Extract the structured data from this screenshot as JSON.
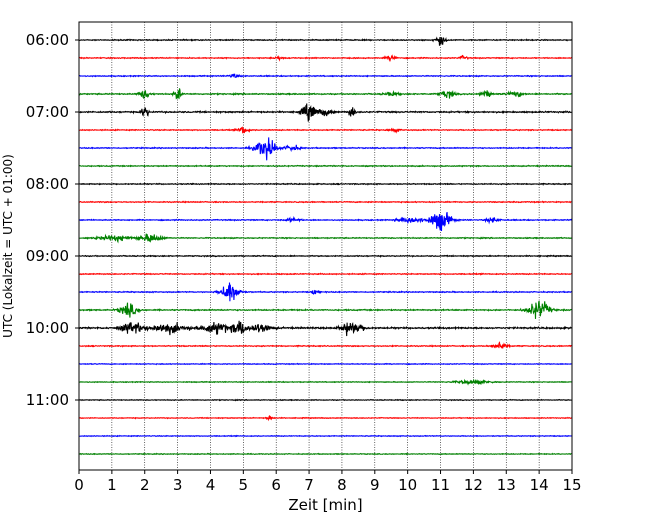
{
  "chart_data": {
    "type": "line",
    "xlabel": "Zeit  [min]",
    "ylabel": "UTC (Lokalzeit = UTC + 01:00)",
    "xlim": [
      0,
      15
    ],
    "x_ticks": [
      0,
      1,
      2,
      3,
      4,
      5,
      6,
      7,
      8,
      9,
      10,
      11,
      12,
      13,
      14,
      15
    ],
    "y_tick_labels": [
      "06:00",
      "07:00",
      "08:00",
      "09:00",
      "10:00",
      "11:00"
    ],
    "y_tick_trace_index": [
      0,
      4,
      8,
      12,
      16,
      20
    ],
    "trace_interval_minutes": 15,
    "first_trace": "06:00",
    "grid": "vertical dotted at each minute",
    "color_cycle": [
      "#000000",
      "#ff0000",
      "#0000ff",
      "#008000"
    ],
    "series": [
      {
        "start": "06:00",
        "color": "#000000",
        "base_amp": 0.5,
        "events": [
          {
            "t": 11.0,
            "amp": 5,
            "w": 0.15
          }
        ]
      },
      {
        "start": "06:15",
        "color": "#ff0000",
        "base_amp": 0.5,
        "events": [
          {
            "t": 6.1,
            "amp": 2,
            "w": 0.1
          },
          {
            "t": 9.5,
            "amp": 3,
            "w": 0.15
          },
          {
            "t": 11.7,
            "amp": 2.5,
            "w": 0.1
          }
        ]
      },
      {
        "start": "06:30",
        "color": "#0000ff",
        "base_amp": 0.5,
        "events": [
          {
            "t": 4.7,
            "amp": 2,
            "w": 0.15
          }
        ]
      },
      {
        "start": "06:45",
        "color": "#008000",
        "base_amp": 0.6,
        "events": [
          {
            "t": 2.0,
            "amp": 5,
            "w": 0.15
          },
          {
            "t": 3.0,
            "amp": 7,
            "w": 0.1
          },
          {
            "t": 9.5,
            "amp": 2,
            "w": 0.2
          },
          {
            "t": 11.2,
            "amp": 4,
            "w": 0.2
          },
          {
            "t": 12.4,
            "amp": 3,
            "w": 0.2
          },
          {
            "t": 13.3,
            "amp": 3,
            "w": 0.2
          }
        ]
      },
      {
        "start": "07:00",
        "color": "#000000",
        "base_amp": 0.7,
        "events": [
          {
            "t": 2.0,
            "amp": 7,
            "w": 0.1
          },
          {
            "t": 7.0,
            "amp": 9,
            "w": 0.2
          },
          {
            "t": 7.5,
            "amp": 4,
            "w": 0.2
          },
          {
            "t": 8.3,
            "amp": 8,
            "w": 0.08
          }
        ]
      },
      {
        "start": "07:15",
        "color": "#ff0000",
        "base_amp": 0.5,
        "events": [
          {
            "t": 5.0,
            "amp": 4,
            "w": 0.15
          },
          {
            "t": 9.6,
            "amp": 2,
            "w": 0.15
          }
        ]
      },
      {
        "start": "07:30",
        "color": "#0000ff",
        "base_amp": 0.5,
        "events": [
          {
            "t": 5.7,
            "amp": 11,
            "w": 0.3
          },
          {
            "t": 6.5,
            "amp": 3,
            "w": 0.2
          }
        ]
      },
      {
        "start": "07:45",
        "color": "#008000",
        "base_amp": 0.5,
        "events": []
      },
      {
        "start": "08:00",
        "color": "#000000",
        "base_amp": 0.5,
        "events": []
      },
      {
        "start": "08:15",
        "color": "#ff0000",
        "base_amp": 0.5,
        "events": []
      },
      {
        "start": "08:30",
        "color": "#0000ff",
        "base_amp": 0.5,
        "events": [
          {
            "t": 6.5,
            "amp": 2,
            "w": 0.2
          },
          {
            "t": 10.1,
            "amp": 3,
            "w": 0.4
          },
          {
            "t": 11.0,
            "amp": 11,
            "w": 0.3
          },
          {
            "t": 12.6,
            "amp": 2.5,
            "w": 0.2
          }
        ]
      },
      {
        "start": "08:45",
        "color": "#008000",
        "base_amp": 0.5,
        "events": [
          {
            "t": 1.1,
            "amp": 3,
            "w": 0.5
          },
          {
            "t": 2.2,
            "amp": 5,
            "w": 0.3
          }
        ]
      },
      {
        "start": "09:00",
        "color": "#000000",
        "base_amp": 0.5,
        "events": []
      },
      {
        "start": "09:15",
        "color": "#ff0000",
        "base_amp": 0.5,
        "events": []
      },
      {
        "start": "09:30",
        "color": "#0000ff",
        "base_amp": 0.5,
        "events": [
          {
            "t": 4.6,
            "amp": 12,
            "w": 0.25
          },
          {
            "t": 7.2,
            "amp": 3,
            "w": 0.1
          }
        ]
      },
      {
        "start": "09:45",
        "color": "#008000",
        "base_amp": 0.6,
        "events": [
          {
            "t": 1.5,
            "amp": 7,
            "w": 0.25
          },
          {
            "t": 14.0,
            "amp": 10,
            "w": 0.3
          }
        ]
      },
      {
        "start": "10:00",
        "color": "#000000",
        "base_amp": 0.8,
        "events": [
          {
            "t": 1.6,
            "amp": 6,
            "w": 0.3
          },
          {
            "t": 2.7,
            "amp": 5,
            "w": 0.6
          },
          {
            "t": 4.2,
            "amp": 6,
            "w": 0.4
          },
          {
            "t": 4.9,
            "amp": 8,
            "w": 0.2
          },
          {
            "t": 5.5,
            "amp": 5,
            "w": 0.3
          },
          {
            "t": 8.3,
            "amp": 8,
            "w": 0.3
          }
        ]
      },
      {
        "start": "10:15",
        "color": "#ff0000",
        "base_amp": 0.5,
        "events": [
          {
            "t": 12.8,
            "amp": 4,
            "w": 0.2
          }
        ]
      },
      {
        "start": "10:30",
        "color": "#0000ff",
        "base_amp": 0.4,
        "events": []
      },
      {
        "start": "10:45",
        "color": "#008000",
        "base_amp": 0.4,
        "events": [
          {
            "t": 12.0,
            "amp": 2,
            "w": 0.5
          }
        ]
      },
      {
        "start": "11:00",
        "color": "#000000",
        "base_amp": 0.4,
        "events": []
      },
      {
        "start": "11:15",
        "color": "#ff0000",
        "base_amp": 0.4,
        "events": [
          {
            "t": 5.8,
            "amp": 3,
            "w": 0.08
          }
        ]
      },
      {
        "start": "11:30",
        "color": "#0000ff",
        "base_amp": 0.4,
        "events": []
      },
      {
        "start": "11:45",
        "color": "#008000",
        "base_amp": 0.4,
        "events": []
      }
    ]
  }
}
